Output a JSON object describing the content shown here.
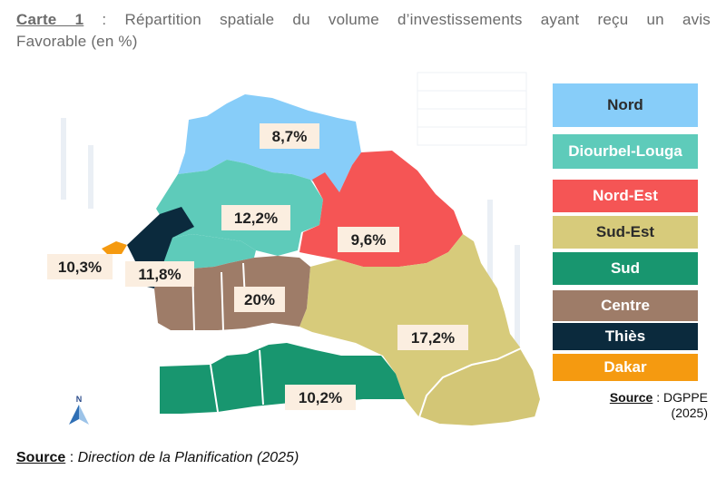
{
  "title": {
    "label": "Carte 1",
    "text_line1": " : Répartition spatiale du volume d’investissements ayant reçu un avis",
    "text_line2": "Favorable (en %)"
  },
  "regions": [
    {
      "name": "Nord",
      "value": "8,7%",
      "color": "#87cdf9"
    },
    {
      "name": "Diourbel-Louga",
      "value": "12,2%",
      "color": "#5ecbba"
    },
    {
      "name": "Nord-Est",
      "value": "9,6%",
      "color": "#f55555"
    },
    {
      "name": "Sud-Est",
      "value": "17,2%",
      "color": "#d7cb7b"
    },
    {
      "name": "Sud",
      "value": "10,2%",
      "color": "#18966f"
    },
    {
      "name": "Centre",
      "value": "20%",
      "color": "#9e7c68"
    },
    {
      "name": "Thiès",
      "value": "11,8%",
      "color": "#0b2a3d"
    },
    {
      "name": "Dakar",
      "value": "10,3%",
      "color": "#f59a10"
    }
  ],
  "legend": [
    {
      "label": "Nord",
      "color": "#87cdf9",
      "text_color": "#2b2b2b"
    },
    {
      "label": "Diourbel-Louga",
      "color": "#5ecbba",
      "text_color": "#ffffff"
    },
    {
      "label": "Nord-Est",
      "color": "#f55555",
      "text_color": "#ffffff"
    },
    {
      "label": "Sud-Est",
      "color": "#d7cb7b",
      "text_color": "#2b2b2b"
    },
    {
      "label": "Sud",
      "color": "#18966f",
      "text_color": "#ffffff"
    },
    {
      "label": "Centre",
      "color": "#9e7c68",
      "text_color": "#ffffff"
    },
    {
      "label": "Thiès",
      "color": "#0b2a3d",
      "text_color": "#ffffff"
    },
    {
      "label": "Dakar",
      "color": "#f59a10",
      "text_color": "#ffffff"
    }
  ],
  "map_source": {
    "label": "Source",
    "text": " : DGPPE",
    "year": "(2025)"
  },
  "north_arrow": {
    "label": "N",
    "icon": "north-arrow-icon"
  },
  "bottom_source": {
    "label": "Source",
    "sep": " :",
    "text": " Direction de la Planification (2025)"
  }
}
